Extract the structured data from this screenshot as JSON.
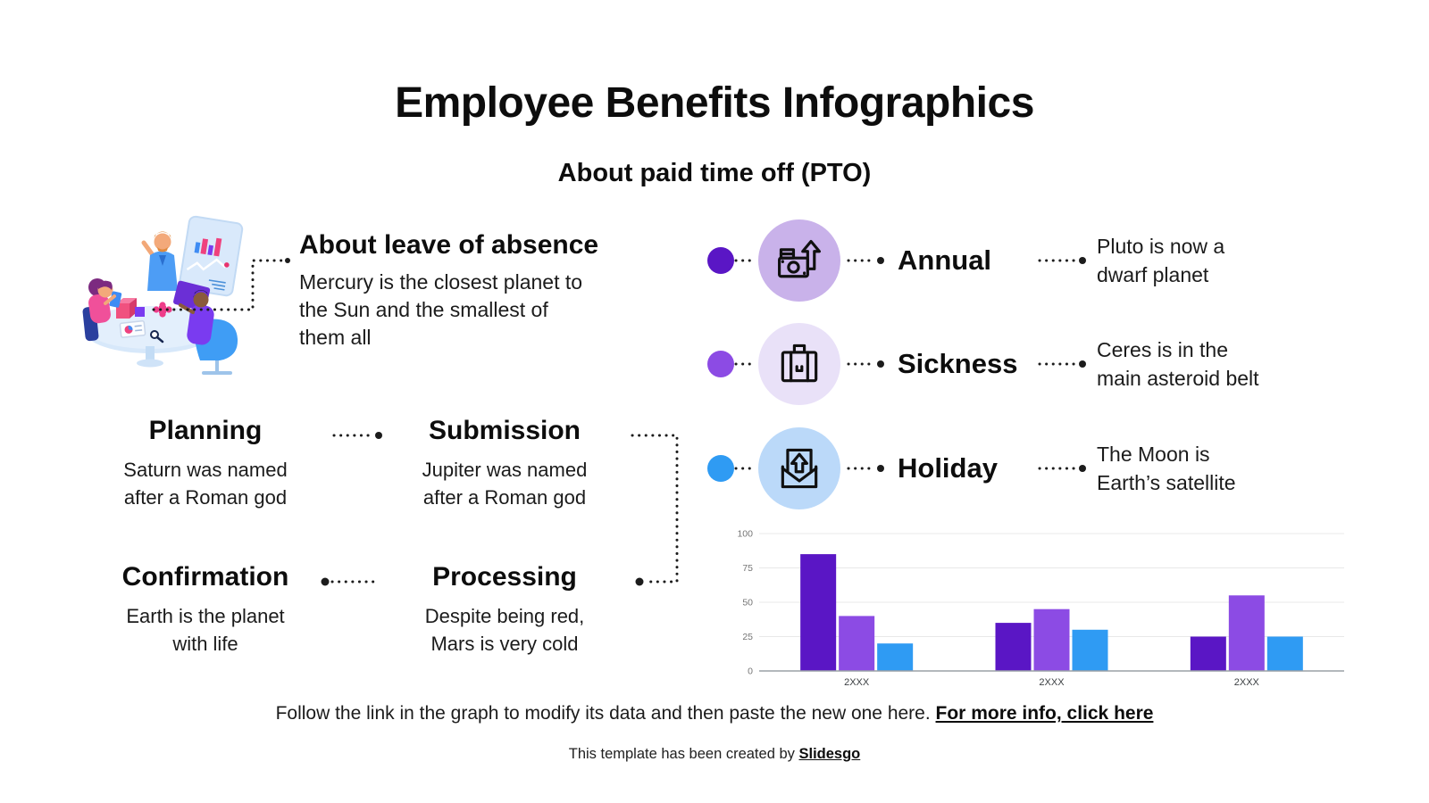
{
  "slide": {
    "title": "Employee Benefits Infographics",
    "subtitle": "About paid time off (PTO)"
  },
  "about": {
    "heading": "About leave of absence",
    "body": "Mercury is the closest planet to\nthe Sun and the smallest of\nthem all"
  },
  "phases": [
    {
      "title": "Planning",
      "body": "Saturn was named\nafter a Roman god"
    },
    {
      "title": "Submission",
      "body": "Jupiter was named\nafter a Roman god"
    },
    {
      "title": "Confirmation",
      "body": "Earth is the planet\nwith life"
    },
    {
      "title": "Processing",
      "body": "Despite being red,\nMars is very cold"
    }
  ],
  "benefits": [
    {
      "label": "Annual",
      "description": "Pluto is now a\ndwarf planet",
      "icon": "money-growth-icon",
      "bullet_color": "#5a16c5",
      "circle_color": "#c9b2ea"
    },
    {
      "label": "Sickness",
      "description": "Ceres is in the\nmain asteroid belt",
      "icon": "briefcase-icon",
      "bullet_color": "#8c4be4",
      "circle_color": "#e9e1f8"
    },
    {
      "label": "Holiday",
      "description": "The Moon is\nEarth’s satellite",
      "icon": "envelope-arrow-icon",
      "bullet_color": "#2f9bf3",
      "circle_color": "#bbd9f9"
    }
  ],
  "chart_data": {
    "type": "bar",
    "categories": [
      "2XXX",
      "2XXX",
      "2XXX"
    ],
    "series": [
      {
        "name": "series-1",
        "color": "#5a16c5",
        "values": [
          85,
          35,
          25
        ]
      },
      {
        "name": "series-2",
        "color": "#8c4be4",
        "values": [
          40,
          45,
          55
        ]
      },
      {
        "name": "series-3",
        "color": "#2f9bf3",
        "values": [
          20,
          30,
          25
        ]
      }
    ],
    "ylim": [
      0,
      100
    ],
    "yticks": [
      0,
      25,
      50,
      75,
      100
    ],
    "grid": true,
    "legend": false,
    "tick_color": "#757575",
    "grid_color": "#e8e8e8",
    "axis_color": "#9aa0a6",
    "category_color": "#3c4043"
  },
  "footer": {
    "note": "Follow the link in the graph to modify its data and then paste the new one here.",
    "link": "For more info, click here",
    "credit_prefix": "This template has been created by",
    "credit_link": "Slidesgo"
  }
}
